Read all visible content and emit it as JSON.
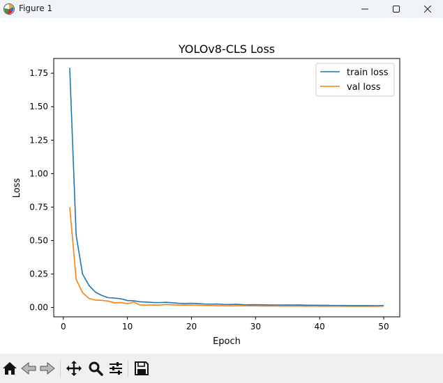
{
  "window": {
    "title": "Figure 1"
  },
  "chart_data": {
    "type": "line",
    "title": "YOLOv8-CLS Loss",
    "xlabel": "Epoch",
    "ylabel": "Loss",
    "xlim": [
      -1.5,
      52.5
    ],
    "ylim": [
      -0.07,
      1.86
    ],
    "xticks": [
      0,
      10,
      20,
      30,
      40,
      50
    ],
    "yticks": [
      0.0,
      0.25,
      0.5,
      0.75,
      1.0,
      1.25,
      1.5,
      1.75
    ],
    "ytick_labels": [
      "0.00",
      "0.25",
      "0.50",
      "0.75",
      "1.00",
      "1.25",
      "1.50",
      "1.75"
    ],
    "grid": false,
    "legend_position": "upper right",
    "x": [
      1,
      2,
      3,
      4,
      5,
      6,
      7,
      8,
      9,
      10,
      11,
      12,
      13,
      14,
      15,
      16,
      17,
      18,
      19,
      20,
      21,
      22,
      23,
      24,
      25,
      26,
      27,
      28,
      29,
      30,
      31,
      32,
      33,
      34,
      35,
      36,
      37,
      38,
      39,
      40,
      41,
      42,
      43,
      44,
      45,
      46,
      47,
      48,
      49,
      50
    ],
    "series": [
      {
        "name": "train loss",
        "color": "#1f77b4",
        "values": [
          1.79,
          0.54,
          0.25,
          0.165,
          0.115,
          0.09,
          0.073,
          0.07,
          0.065,
          0.052,
          0.05,
          0.042,
          0.04,
          0.037,
          0.036,
          0.039,
          0.035,
          0.031,
          0.03,
          0.031,
          0.029,
          0.026,
          0.025,
          0.026,
          0.023,
          0.022,
          0.024,
          0.021,
          0.02,
          0.021,
          0.02,
          0.019,
          0.019,
          0.018,
          0.019,
          0.018,
          0.019,
          0.017,
          0.017,
          0.016,
          0.016,
          0.015,
          0.015,
          0.015,
          0.014,
          0.014,
          0.014,
          0.014,
          0.013,
          0.015
        ]
      },
      {
        "name": "val loss",
        "color": "#ff7f0e",
        "values": [
          0.75,
          0.21,
          0.11,
          0.068,
          0.055,
          0.053,
          0.048,
          0.035,
          0.037,
          0.028,
          0.04,
          0.018,
          0.018,
          0.019,
          0.018,
          0.022,
          0.02,
          0.018,
          0.019,
          0.018,
          0.017,
          0.015,
          0.014,
          0.013,
          0.013,
          0.012,
          0.013,
          0.013,
          0.012,
          0.012,
          0.011,
          0.011,
          0.011,
          0.01,
          0.01,
          0.01,
          0.01,
          0.009,
          0.01,
          0.009,
          0.009,
          0.009,
          0.009,
          0.008,
          0.008,
          0.008,
          0.008,
          0.008,
          0.008,
          0.009
        ]
      }
    ]
  }
}
